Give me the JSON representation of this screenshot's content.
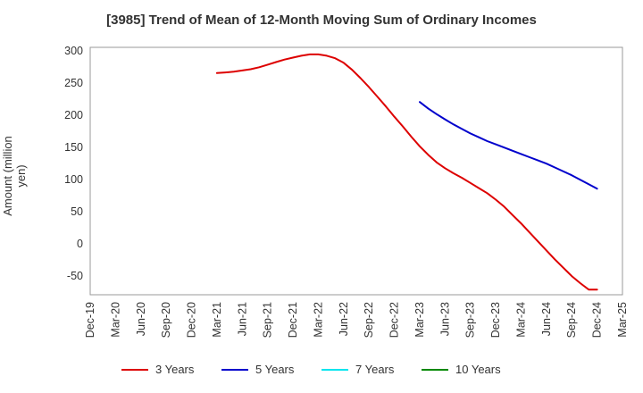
{
  "chart_data": {
    "type": "line",
    "title": "[3985]  Trend of Mean of 12-Month Moving Sum of Ordinary Incomes",
    "xlabel": "",
    "ylabel": "Amount (million yen)",
    "x_tick_labels": [
      "Dec-19",
      "Mar-20",
      "Jun-20",
      "Sep-20",
      "Dec-20",
      "Mar-21",
      "Jun-21",
      "Sep-21",
      "Dec-21",
      "Mar-22",
      "Jun-22",
      "Sep-22",
      "Dec-22",
      "Mar-23",
      "Jun-23",
      "Sep-23",
      "Dec-23",
      "Mar-24",
      "Jun-24",
      "Sep-24",
      "Dec-24",
      "Mar-25"
    ],
    "y_tick_labels": [
      "300",
      "250",
      "200",
      "150",
      "100",
      "50",
      "0",
      "-50"
    ],
    "y_ticks": [
      300,
      250,
      200,
      150,
      100,
      50,
      0,
      -50
    ],
    "ylim": [
      -80,
      305
    ],
    "grid": true,
    "series": [
      {
        "name": "3 Years",
        "color": "#dd0000",
        "x": [
          "Mar-21",
          "Apr-21",
          "May-21",
          "Jun-21",
          "Jul-21",
          "Aug-21",
          "Sep-21",
          "Oct-21",
          "Nov-21",
          "Dec-21",
          "Jan-22",
          "Feb-22",
          "Mar-22",
          "Apr-22",
          "May-22",
          "Jun-22",
          "Jul-22",
          "Aug-22",
          "Sep-22",
          "Oct-22",
          "Nov-22",
          "Dec-22",
          "Jan-23",
          "Feb-23",
          "Mar-23",
          "Apr-23",
          "May-23",
          "Jun-23",
          "Jul-23",
          "Aug-23",
          "Sep-23",
          "Oct-23",
          "Nov-23",
          "Dec-23",
          "Jan-24",
          "Feb-24",
          "Mar-24",
          "Apr-24",
          "May-24",
          "Jun-24",
          "Jul-24",
          "Aug-24",
          "Sep-24",
          "Oct-24",
          "Nov-24",
          "Dec-24"
        ],
        "values": [
          265,
          266,
          267,
          269,
          271,
          274,
          278,
          282,
          286,
          289,
          292,
          294,
          294,
          292,
          288,
          281,
          270,
          257,
          243,
          228,
          213,
          197,
          182,
          166,
          151,
          138,
          126,
          117,
          109,
          102,
          94,
          86,
          78,
          68,
          57,
          44,
          31,
          17,
          3,
          -11,
          -25,
          -38,
          -51,
          -62,
          -72,
          -72
        ]
      },
      {
        "name": "5 Years",
        "color": "#0000cc",
        "x": [
          "Mar-23",
          "Apr-23",
          "May-23",
          "Jun-23",
          "Jul-23",
          "Aug-23",
          "Sep-23",
          "Oct-23",
          "Nov-23",
          "Dec-23",
          "Jan-24",
          "Feb-24",
          "Mar-24",
          "Apr-24",
          "May-24",
          "Jun-24",
          "Jul-24",
          "Aug-24",
          "Sep-24",
          "Oct-24",
          "Nov-24",
          "Dec-24"
        ],
        "values": [
          220,
          210,
          201,
          193,
          185,
          178,
          171,
          165,
          159,
          154,
          149,
          144,
          139,
          134,
          129,
          124,
          118,
          112,
          106,
          99,
          92,
          85
        ]
      },
      {
        "name": "7 Years",
        "color": "#00e5ee",
        "x": [],
        "values": []
      },
      {
        "name": "10 Years",
        "color": "#008800",
        "x": [],
        "values": []
      }
    ],
    "legend_position": "bottom"
  }
}
